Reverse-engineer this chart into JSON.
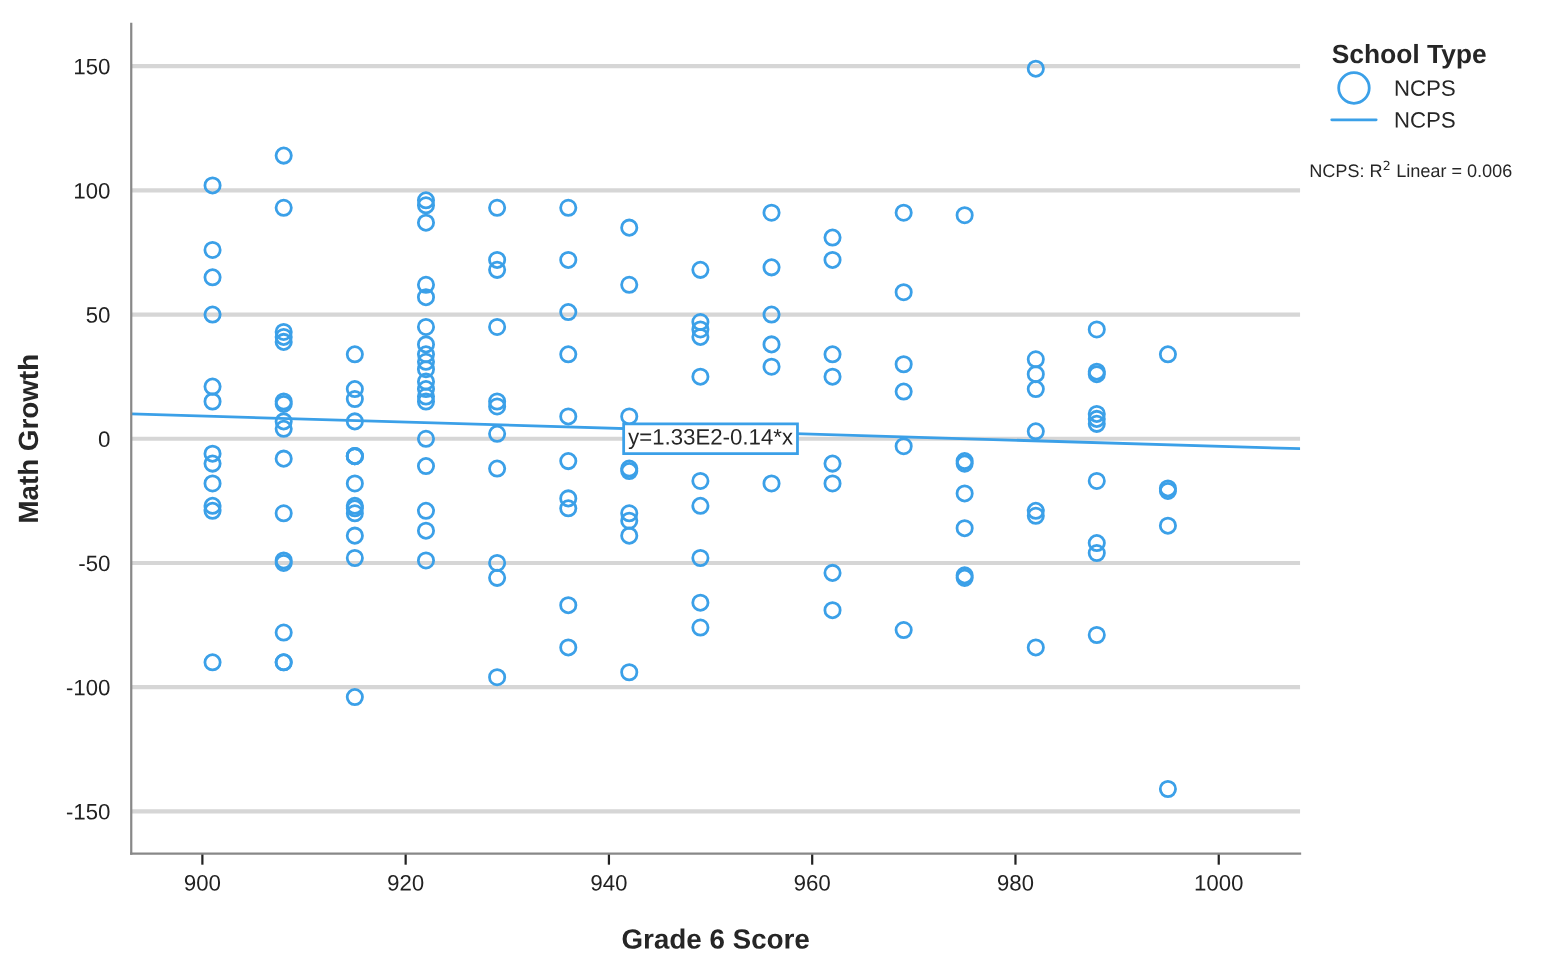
{
  "chart_data": {
    "type": "scatter",
    "xlabel": "Grade 6 Score",
    "ylabel": "Math Growth",
    "legend_title": "School Type",
    "xlim": [
      893,
      1008
    ],
    "xticks": [
      900,
      920,
      940,
      960,
      980,
      1000
    ],
    "ylim": [
      -167,
      167
    ],
    "yticks": [
      -150,
      -100,
      -50,
      0,
      50,
      100,
      150
    ],
    "grid": "y",
    "legend": "top right",
    "annotations": [
      {
        "text": "y=1.33E2-0.14*x",
        "x": 950,
        "y": 0
      },
      "NCPS: R$^{2}$ Linear = 0.006"
    ],
    "series": [
      {
        "name": "NCPS",
        "color": "#3ba0e8",
        "marker": "circle",
        "x": [
          901,
          901,
          901,
          901,
          901,
          901,
          901,
          901,
          901,
          901,
          901,
          901,
          908,
          908,
          908,
          908,
          908,
          908,
          908,
          908,
          908,
          908,
          908,
          908,
          908,
          908,
          908,
          908,
          915,
          915,
          915,
          915,
          915,
          915,
          915,
          915,
          915,
          915,
          915,
          915,
          915,
          915,
          922,
          922,
          922,
          922,
          922,
          922,
          922,
          922,
          922,
          922,
          922,
          922,
          922,
          922,
          922,
          922,
          922,
          922,
          922,
          929,
          929,
          929,
          929,
          929,
          929,
          929,
          929,
          929,
          929,
          929,
          936,
          936,
          936,
          936,
          936,
          936,
          936,
          936,
          936,
          936,
          942,
          942,
          942,
          942,
          942,
          942,
          942,
          942,
          942,
          949,
          949,
          949,
          949,
          949,
          949,
          949,
          949,
          949,
          949,
          956,
          956,
          956,
          956,
          956,
          956,
          962,
          962,
          962,
          962,
          962,
          962,
          962,
          962,
          969,
          969,
          969,
          969,
          969,
          969,
          975,
          975,
          975,
          975,
          975,
          975,
          975,
          982,
          982,
          982,
          982,
          982,
          982,
          982,
          982,
          988,
          988,
          988,
          988,
          988,
          988,
          988,
          988,
          988,
          988,
          995,
          995,
          995,
          995,
          995
        ],
        "values": [
          102,
          76,
          65,
          50,
          21,
          15,
          -6,
          -10,
          -18,
          -27,
          -29,
          -90,
          114,
          93,
          43,
          41,
          39,
          15,
          14,
          7,
          4,
          -8,
          -30,
          -49,
          -50,
          -78,
          -90,
          -90,
          34,
          20,
          16,
          7,
          -7,
          -7,
          -18,
          -27,
          -28,
          -30,
          -39,
          -48,
          -104,
          -7,
          96,
          94,
          87,
          62,
          57,
          45,
          38,
          34,
          31,
          28,
          23,
          20,
          17,
          15,
          0,
          -11,
          -29,
          -37,
          -49,
          93,
          72,
          68,
          45,
          15,
          13,
          2,
          -12,
          -50,
          -56,
          -96,
          93,
          72,
          51,
          34,
          9,
          -9,
          -24,
          -28,
          -67,
          -84,
          85,
          62,
          9,
          -12,
          -13,
          -30,
          -33,
          -39,
          -94,
          68,
          47,
          44,
          41,
          25,
          -17,
          -27,
          -48,
          -66,
          -76,
          91,
          69,
          50,
          38,
          29,
          -18,
          81,
          72,
          34,
          25,
          -10,
          -18,
          -54,
          -69,
          91,
          59,
          30,
          19,
          -3,
          -77,
          90,
          -9,
          -10,
          -22,
          -36,
          -55,
          -56,
          149,
          32,
          26,
          20,
          3,
          -29,
          -31,
          -84,
          44,
          27,
          26,
          10,
          8,
          6,
          -17,
          -42,
          -46,
          -79,
          34,
          -20,
          -21,
          -35,
          -141
        ]
      },
      {
        "name": "NCPS",
        "type": "line",
        "color": "#3ba0e8",
        "x": [
          893,
          1008
        ],
        "values": [
          10,
          -4
        ]
      }
    ]
  }
}
